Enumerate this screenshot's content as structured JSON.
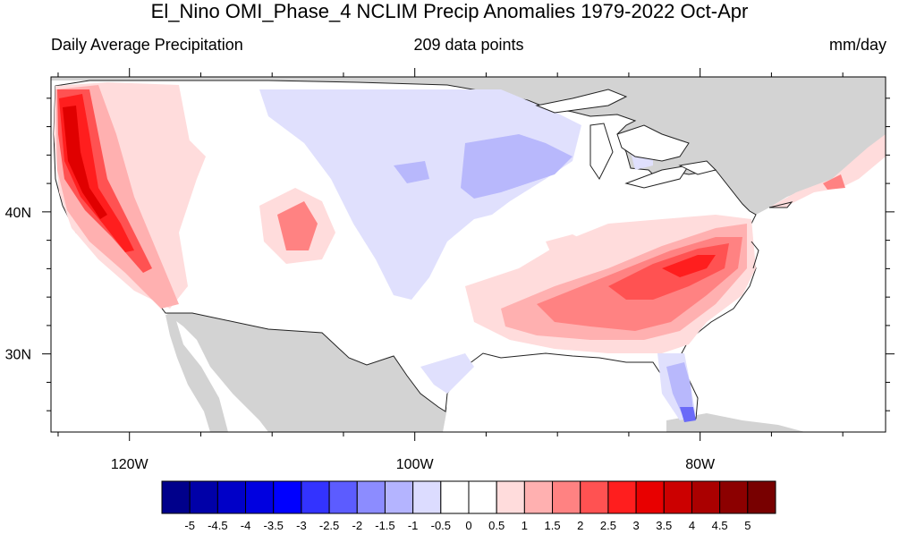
{
  "title": "El_Nino OMI_Phase_4 NCLIM Precip Anomalies 1979-2022 Oct-Apr",
  "subtitle_left": "Daily Average Precipitation",
  "subtitle_center": "209 data points",
  "subtitle_right": "mm/day",
  "map": {
    "projection": "cylindrical equidistant",
    "lon_range": [
      -125.5,
      -67
    ],
    "lat_range": [
      24.5,
      49.5
    ],
    "lat_ticks": [
      {
        "value": 40,
        "label": "40N"
      },
      {
        "value": 30,
        "label": "30N"
      }
    ],
    "lon_ticks": [
      {
        "value": -120,
        "label": "120W"
      },
      {
        "value": -100,
        "label": "100W"
      },
      {
        "value": -80,
        "label": "80W"
      }
    ],
    "land_outside_color": "#d3d3d3",
    "ocean_color": "#ffffff"
  },
  "colorbar": {
    "labels": [
      "-5",
      "-4.5",
      "-4",
      "-3.5",
      "-3",
      "-2.5",
      "-2",
      "-1.5",
      "-1",
      "-0.5",
      "0",
      "0.5",
      "1",
      "1.5",
      "2",
      "2.5",
      "3",
      "3.5",
      "4",
      "4.5",
      "5"
    ],
    "colors": [
      "#00008b",
      "#0000a8",
      "#0000c8",
      "#0000e0",
      "#0000ff",
      "#3333ff",
      "#5c5cff",
      "#8c8cff",
      "#b4b4ff",
      "#dcdcff",
      "#ffffff",
      "#ffffff",
      "#ffdcdc",
      "#ffb0b0",
      "#ff8282",
      "#ff5252",
      "#ff1e1e",
      "#e80000",
      "#cc0000",
      "#aa0000",
      "#8c0000",
      "#780000"
    ]
  }
}
